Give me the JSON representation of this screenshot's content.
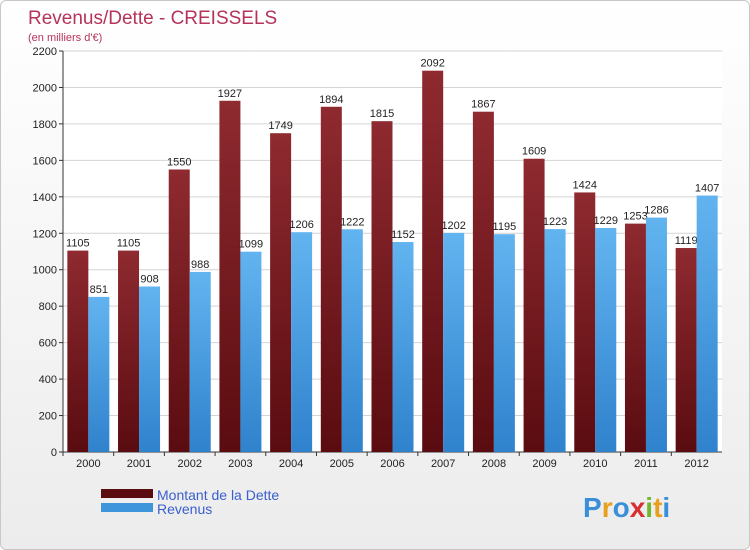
{
  "chart_data": {
    "type": "bar",
    "title": "Revenus/Dette - CREISSELS",
    "subtitle": "(en milliers d'€)",
    "categories": [
      "2000",
      "2001",
      "2002",
      "2003",
      "2004",
      "2005",
      "2006",
      "2007",
      "2008",
      "2009",
      "2010",
      "2011",
      "2012"
    ],
    "series": [
      {
        "name": "Montant de la Dette",
        "values": [
          1105,
          1105,
          1550,
          1927,
          1749,
          1894,
          1815,
          2092,
          1867,
          1609,
          1424,
          1253,
          1119
        ],
        "color": "#7a1a1f"
      },
      {
        "name": "Revenus",
        "values": [
          851,
          908,
          988,
          1099,
          1206,
          1222,
          1152,
          1202,
          1195,
          1223,
          1229,
          1286,
          1407
        ],
        "color": "#4aa3e8"
      }
    ],
    "ylim": [
      0,
      2200
    ],
    "yticks": [
      0,
      200,
      400,
      600,
      800,
      1000,
      1200,
      1400,
      1600,
      1800,
      2000,
      2200
    ],
    "grid": true,
    "legend_position": "bottom-left"
  },
  "logo": {
    "letters": [
      "P",
      "r",
      "o",
      "x",
      "i",
      "t",
      "i"
    ],
    "colors": [
      "#3a8fd8",
      "#e8a020",
      "#3a8fd8",
      "#d83030",
      "#70b830",
      "#e8a020",
      "#3a8fd8"
    ]
  }
}
